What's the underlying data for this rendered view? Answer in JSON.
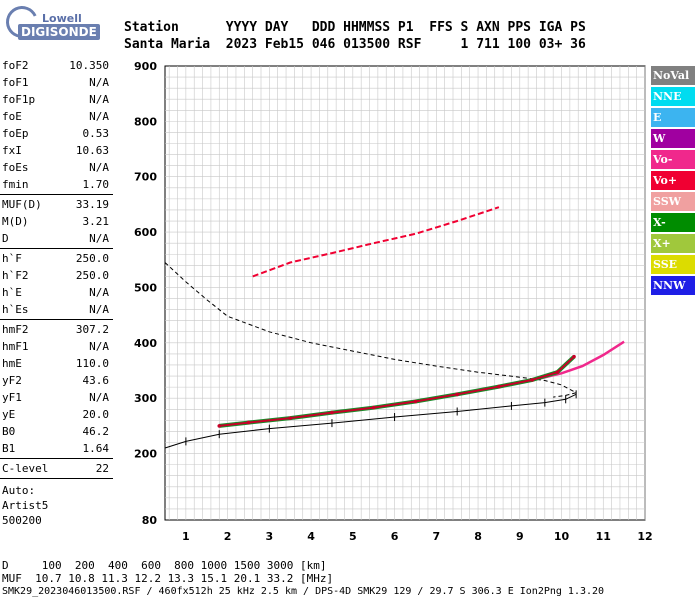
{
  "logo": {
    "top": "Lowell",
    "main": "DIGISONDE"
  },
  "header": {
    "line1": "Station      YYYY DAY   DDD HHMMSS P1  FFS S AXN PPS IGA PS",
    "line2": "Santa Maria  2023 Feb15 046 013500 RSF     1 711 100 03+ 36"
  },
  "params": [
    {
      "name": "foF2",
      "value": "10.350"
    },
    {
      "name": "foF1",
      "value": "N/A"
    },
    {
      "name": "foF1p",
      "value": "N/A"
    },
    {
      "name": "foE",
      "value": "N/A"
    },
    {
      "name": "foEp",
      "value": "0.53"
    },
    {
      "name": "fxI",
      "value": "10.63"
    },
    {
      "name": "foEs",
      "value": "N/A"
    },
    {
      "name": "fmin",
      "value": "1.70"
    },
    {
      "sep": true
    },
    {
      "name": "MUF(D)",
      "value": "33.19"
    },
    {
      "name": "M(D)",
      "value": "3.21"
    },
    {
      "name": "D",
      "value": "N/A"
    },
    {
      "sep": true
    },
    {
      "name": "h`F",
      "value": "250.0"
    },
    {
      "name": "h`F2",
      "value": "250.0"
    },
    {
      "name": "h`E",
      "value": "N/A"
    },
    {
      "name": "h`Es",
      "value": "N/A"
    },
    {
      "sep": true
    },
    {
      "name": "hmF2",
      "value": "307.2"
    },
    {
      "name": "hmF1",
      "value": "N/A"
    },
    {
      "name": "hmE",
      "value": "110.0"
    },
    {
      "name": "yF2",
      "value": "43.6"
    },
    {
      "name": "yF1",
      "value": "N/A"
    },
    {
      "name": "yE",
      "value": "20.0"
    },
    {
      "name": "B0",
      "value": "46.2"
    },
    {
      "name": "B1",
      "value": "1.64"
    },
    {
      "sep": true
    },
    {
      "name": "C-level",
      "value": "22"
    },
    {
      "sep": true
    }
  ],
  "auto": {
    "line1": "Auto:",
    "line2": "Artist5",
    "line3": "500200"
  },
  "legend": [
    {
      "label": "NoVal",
      "color": "#808080"
    },
    {
      "label": "NNE",
      "color": "#00dcf0"
    },
    {
      "label": "E",
      "color": "#3cb4f0"
    },
    {
      "label": "W",
      "color": "#a000a0"
    },
    {
      "label": "Vo-",
      "color": "#f0288c"
    },
    {
      "label": "Vo+",
      "color": "#f00032"
    },
    {
      "label": "SSW",
      "color": "#f0a0a0"
    },
    {
      "label": "X-",
      "color": "#008c00"
    },
    {
      "label": "X+",
      "color": "#a0c83c"
    },
    {
      "label": "SSE",
      "color": "#dcdc00"
    },
    {
      "label": "NNW",
      "color": "#1e1ee6"
    }
  ],
  "footer": {
    "line1": "D     100  200  400  600  800 1000 1500 3000 [km]",
    "line2": "MUF  10.7 10.8 11.3 12.2 13.3 15.1 20.1 33.2 [MHz]",
    "line3": "SMK29_2023046013500.RSF / 460fx512h 25 kHz 2.5 km / DPS-4D SMK29 129 / 29.7 S 306.3 E Ion2Png 1.3.20"
  },
  "chart_data": {
    "type": "scatter",
    "xlim": [
      0.5,
      12
    ],
    "ylim": [
      80,
      900
    ],
    "x_ticks": [
      "1",
      "2",
      "3",
      "4",
      "5",
      "6",
      "7",
      "8",
      "9",
      "10",
      "11",
      "12"
    ],
    "y_ticks": [
      "80",
      "200",
      "300",
      "400",
      "500",
      "600",
      "700",
      "800",
      "900"
    ],
    "grid": true,
    "ordinary_trace": {
      "x": [
        1.8,
        2.5,
        3.5,
        4.5,
        5.5,
        6.5,
        7.5,
        8.5,
        9.3,
        9.9,
        10.3
      ],
      "y": [
        250,
        256,
        264,
        274,
        283,
        294,
        307,
        321,
        333,
        347,
        375
      ]
    },
    "x_trace": {
      "x": [
        9.5,
        10.0,
        10.5,
        11.0,
        11.5
      ],
      "y": [
        336,
        345,
        358,
        378,
        402
      ]
    },
    "second_hop": {
      "x": [
        2.6,
        3.5,
        4.5,
        5.5,
        6.5,
        7.5,
        8.5
      ],
      "y": [
        520,
        545,
        562,
        580,
        597,
        620,
        645
      ]
    },
    "true_height_profile": {
      "x": [
        0.5,
        1.0,
        1.8,
        3.0,
        4.5,
        6.0,
        7.5,
        8.8,
        9.6,
        10.1,
        10.35
      ],
      "y": [
        210,
        222,
        235,
        245,
        255,
        266,
        276,
        286,
        292,
        298,
        307
      ]
    },
    "model_virtual_height": {
      "x": [
        0.5,
        1.0,
        1.5,
        2.0,
        3.0,
        4.0,
        5.0,
        6.0,
        7.0,
        8.0,
        9.0,
        9.6,
        10.0,
        10.35,
        10.1,
        9.8
      ],
      "y": [
        545,
        510,
        478,
        448,
        420,
        400,
        385,
        370,
        358,
        347,
        338,
        332,
        324,
        310,
        305,
        302
      ]
    }
  }
}
